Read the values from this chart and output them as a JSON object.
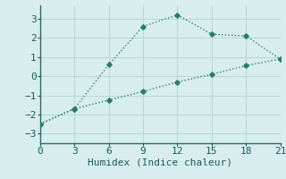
{
  "xlabel": "Humidex (Indice chaleur)",
  "line1_x": [
    0,
    3,
    6,
    9,
    12,
    15,
    18,
    21
  ],
  "line1_y": [
    -2.5,
    -1.7,
    0.6,
    2.6,
    3.2,
    2.2,
    2.1,
    0.9
  ],
  "line2_x": [
    0,
    3,
    6,
    9,
    12,
    15,
    18,
    21
  ],
  "line2_y": [
    -2.5,
    -1.7,
    -1.25,
    -0.8,
    -0.3,
    0.1,
    0.55,
    0.9
  ],
  "line_color": "#2a7a6e",
  "bg_color": "#d8eeee",
  "grid_color": "#b8d8d8",
  "xlim": [
    0,
    21
  ],
  "ylim": [
    -3.5,
    3.7
  ],
  "xticks": [
    0,
    3,
    6,
    9,
    12,
    15,
    18,
    21
  ],
  "yticks": [
    -3,
    -2,
    -1,
    0,
    1,
    2,
    3
  ],
  "label_fontsize": 8,
  "tick_fontsize": 8
}
